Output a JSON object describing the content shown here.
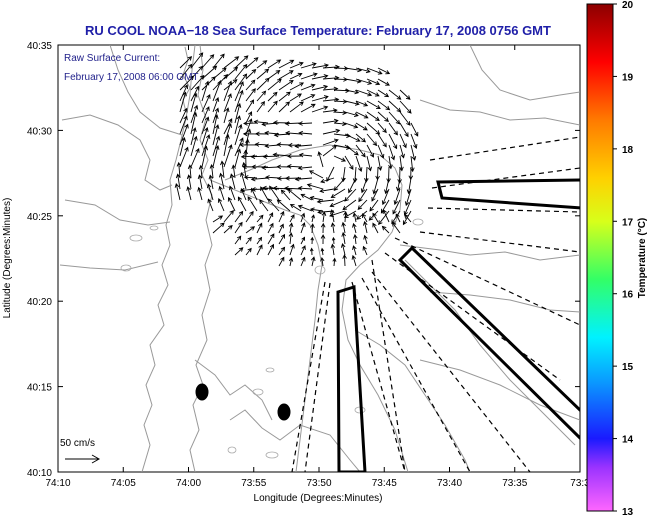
{
  "chart_data": {
    "type": "vector-field",
    "title": "RU COOL  NOAA−18  Sea Surface Temperature:  February 17, 2008 0756 GMT",
    "legend_lines": [
      "Raw Surface Current:",
      "February 17, 2008 06:00 GMT"
    ],
    "xlabel": "Longitude (Degrees:Minutes)",
    "ylabel": "Latitude (Degrees:Minutes)",
    "x_ticks": [
      "74:10",
      "74:05",
      "74:00",
      "73:55",
      "73:50",
      "73:45",
      "73:40",
      "73:35",
      "73:3"
    ],
    "y_ticks": [
      "40:35",
      "40:30",
      "40:25",
      "40:20",
      "40:15",
      "40:10"
    ],
    "x_range_min": [
      -10,
      30
    ],
    "y_range_min": [
      0,
      25
    ],
    "scale_arrow_label": "50 cm/s",
    "colorbar": {
      "label": "Temperature (°C)",
      "range": [
        13,
        20
      ],
      "ticks": [
        "20",
        "19",
        "18",
        "17",
        "16",
        "15",
        "14",
        "13"
      ],
      "stops": [
        {
          "t": 13.0,
          "c": "#ff66ff"
        },
        {
          "t": 13.6,
          "c": "#9b33ff"
        },
        {
          "t": 14.0,
          "c": "#1a1aff"
        },
        {
          "t": 14.8,
          "c": "#0a9cff"
        },
        {
          "t": 15.4,
          "c": "#00f2ff"
        },
        {
          "t": 16.2,
          "c": "#33ff66"
        },
        {
          "t": 17.0,
          "c": "#d8ff1a"
        },
        {
          "t": 17.6,
          "c": "#ffd000"
        },
        {
          "t": 18.4,
          "c": "#ff7a00"
        },
        {
          "t": 19.2,
          "c": "#ff0000"
        },
        {
          "t": 20.0,
          "c": "#8c0000"
        }
      ]
    },
    "colors": {
      "title": "#1f1fa8",
      "legend": "#1f1f8a",
      "coast": "#999999"
    },
    "grid": false
  }
}
